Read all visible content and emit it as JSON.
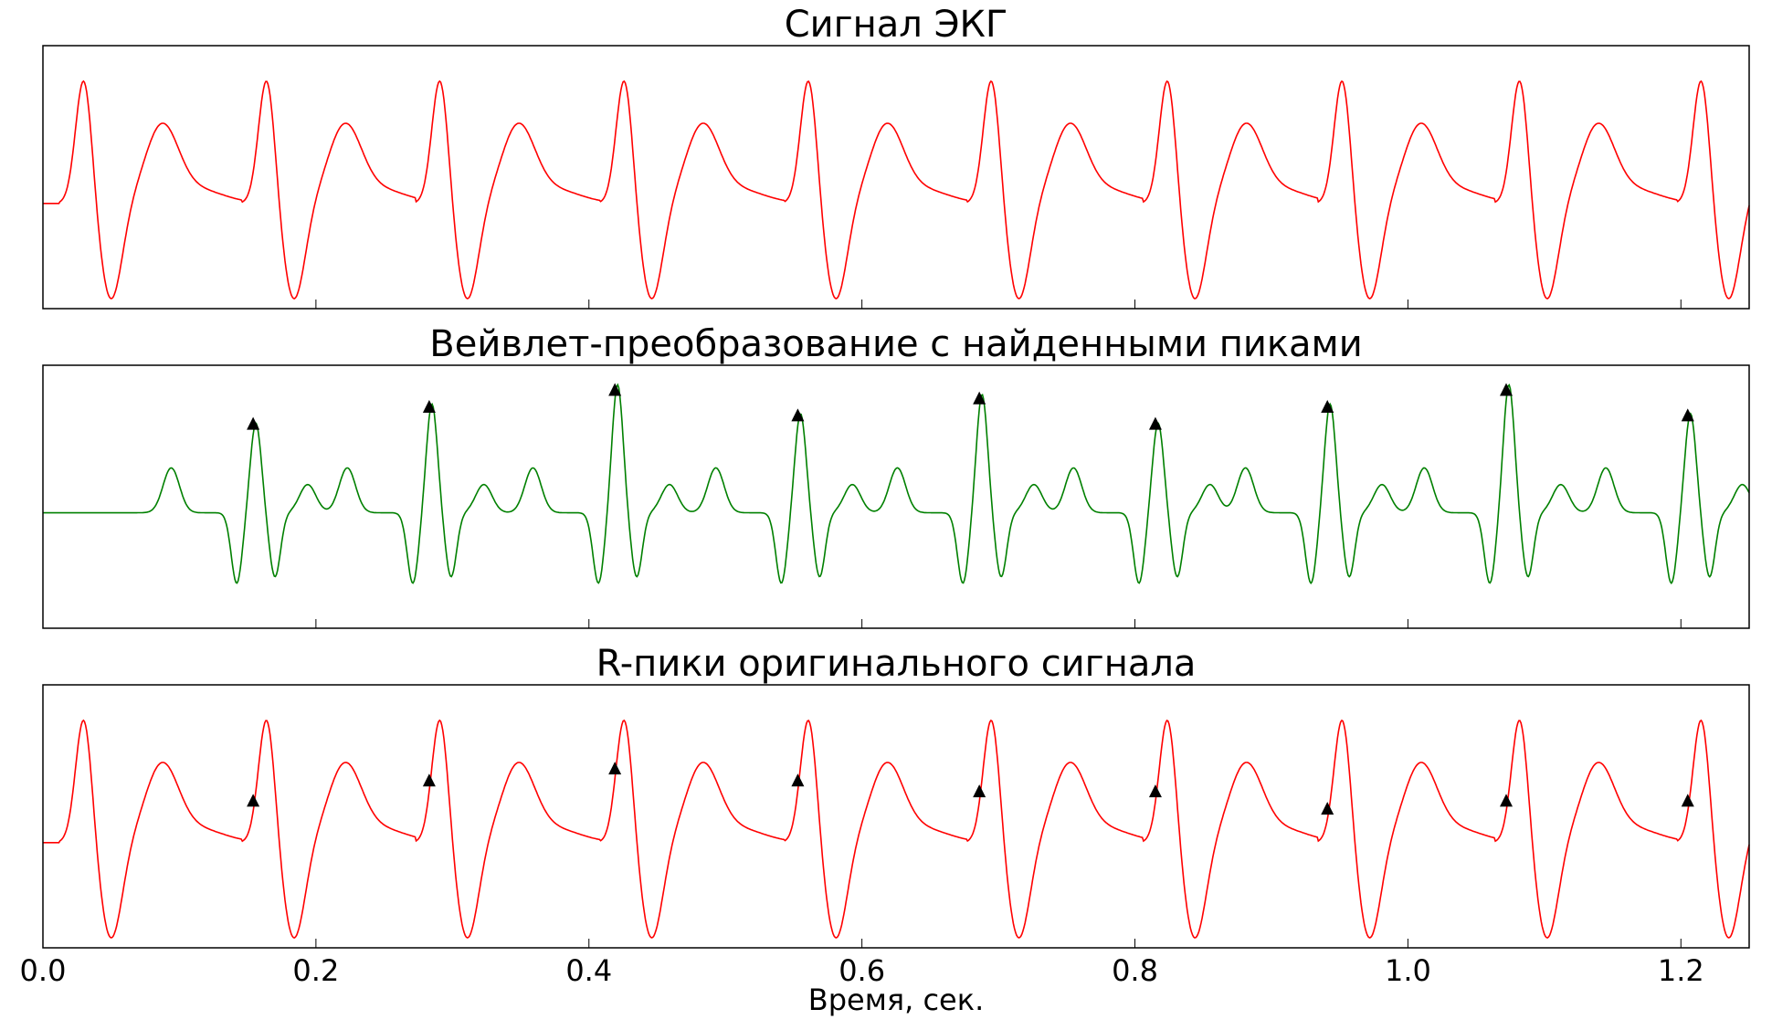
{
  "colors": {
    "ecg": "#ff0000",
    "wavelet": "#008000",
    "marker": "#000000",
    "axes": "#000000"
  },
  "chart_data": [
    {
      "type": "line",
      "title": "Сигнал ЭКГ",
      "series": [
        {
          "values_source": "ecg_waveform",
          "color": "#ff0000"
        }
      ],
      "xlim": [
        0,
        1.25
      ],
      "x_ticks_shown": false,
      "y_ticks_shown": false,
      "beat_onsets_s": [
        0.012,
        0.146,
        0.273,
        0.408,
        0.543,
        0.677,
        0.806,
        0.934,
        1.064,
        1.197
      ]
    },
    {
      "type": "line",
      "title": "Вейвлет-преобразование с найденными пиками",
      "series": [
        {
          "values_source": "wavelet_transform",
          "color": "#008000"
        }
      ],
      "markers": {
        "shape": "triangle-up",
        "color": "#000000",
        "x": [
          0.154,
          0.283,
          0.419,
          0.553,
          0.686,
          0.815,
          0.941,
          1.072,
          1.205
        ]
      },
      "xlim": [
        0,
        1.25
      ],
      "x_ticks_shown": false,
      "y_ticks_shown": false
    },
    {
      "type": "line",
      "title": "R-пики оригинального сигнала",
      "series": [
        {
          "values_source": "ecg_waveform",
          "color": "#ff0000"
        }
      ],
      "markers": {
        "shape": "triangle-up",
        "color": "#000000",
        "x": [
          0.154,
          0.283,
          0.419,
          0.553,
          0.686,
          0.815,
          0.941,
          1.072,
          1.205
        ]
      },
      "xlim": [
        0,
        1.25
      ],
      "xticks": [
        "0.0",
        "0.2",
        "0.4",
        "0.6",
        "0.8",
        "1.0",
        "1.2"
      ],
      "xtick_values": [
        0,
        0.2,
        0.4,
        0.6,
        0.8,
        1.0,
        1.2
      ],
      "xlabel": "Время, сек.",
      "y_ticks_shown": false
    }
  ]
}
